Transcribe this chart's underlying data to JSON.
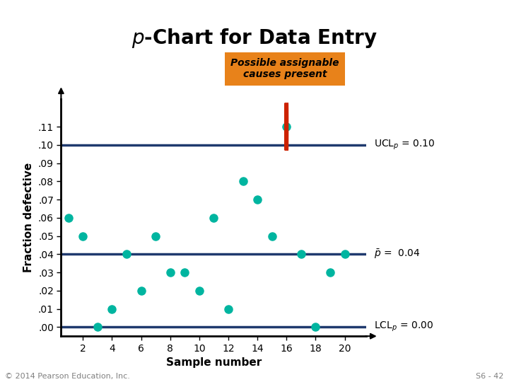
{
  "title": "p-Chart for Data Entry",
  "xlabel": "Sample number",
  "ylabel": "Fraction defective",
  "sample_numbers": [
    1,
    2,
    3,
    4,
    5,
    6,
    7,
    8,
    9,
    10,
    11,
    12,
    13,
    14,
    15,
    16,
    17,
    18,
    19,
    20
  ],
  "fraction_defective": [
    0.06,
    0.05,
    0.0,
    0.01,
    0.04,
    0.02,
    0.05,
    0.03,
    0.03,
    0.02,
    0.06,
    0.01,
    0.08,
    0.07,
    0.05,
    0.11,
    0.04,
    0.0,
    0.03,
    0.04
  ],
  "ucl": 0.1,
  "p_bar": 0.04,
  "lcl": 0.0,
  "ucl_value_label": "UCL$_p$ = 0.10",
  "pbar_value_label": "$\\bar{p}$ =  0.04",
  "lcl_value_label": "LCL$_p$ = 0.00",
  "out_of_control_index": 15,
  "annotation_text": "Possible assignable\ncauses present",
  "annotation_box_color": "#E8821A",
  "annotation_text_color": "#000000",
  "dot_color": "#00B5A0",
  "circle_color": "#CC2200",
  "control_line_color": "#1F3A6E",
  "background_color": "#FFFFFF",
  "title_color": "#000000",
  "ylim": [
    -0.005,
    0.125
  ],
  "yticks": [
    0.0,
    0.01,
    0.02,
    0.03,
    0.04,
    0.05,
    0.06,
    0.07,
    0.08,
    0.09,
    0.1,
    0.11
  ],
  "ytick_labels": [
    ".00",
    ".01",
    ".02",
    ".03",
    ".04",
    ".05",
    ".06",
    ".07",
    ".08",
    ".09",
    ".10",
    ".11"
  ],
  "xticks": [
    2,
    4,
    6,
    8,
    10,
    12,
    14,
    16,
    18,
    20
  ],
  "footer_left": "© 2014 Pearson Education, Inc.",
  "footer_right": "S6 - 42"
}
